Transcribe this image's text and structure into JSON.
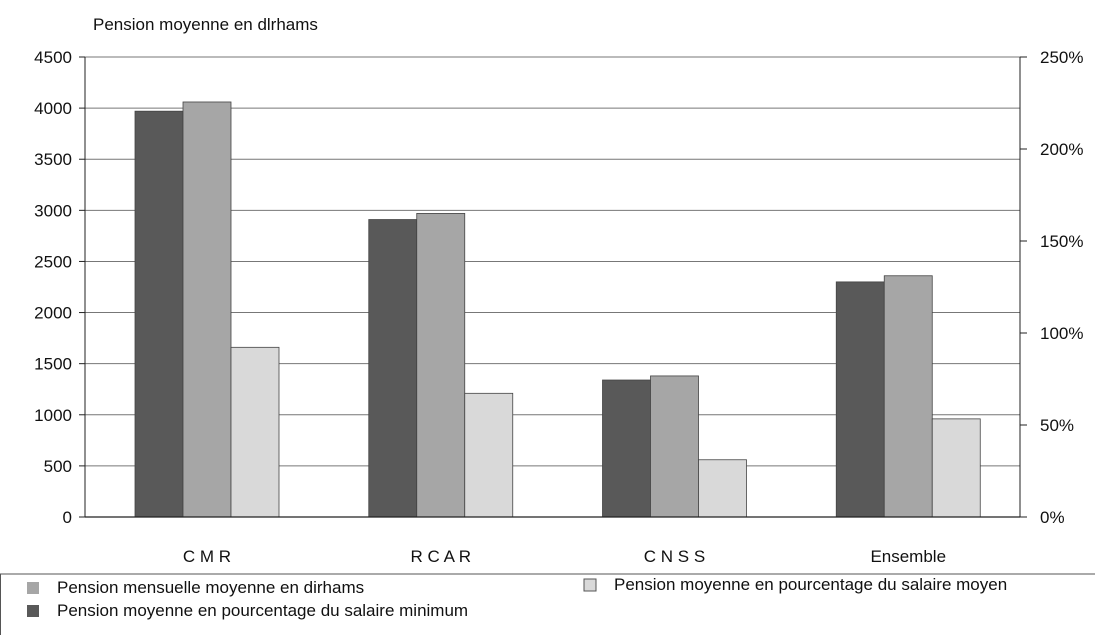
{
  "chart_data": {
    "type": "bar",
    "title": "",
    "ylabel": "Pension moyenne en dlrhams",
    "xlabel": "",
    "categories": [
      "C M R",
      "R C A R",
      "C N S S",
      "Ensemble"
    ],
    "ylim": [
      0,
      4500
    ],
    "yticks": [
      "0",
      "500",
      "1000",
      "1500",
      "2000",
      "2500",
      "3000",
      "3500",
      "4000",
      "4500"
    ],
    "y2lim": [
      0,
      250
    ],
    "y2ticks": [
      "0%",
      "50%",
      "100%",
      "150%",
      "200%",
      "250%"
    ],
    "grid": true,
    "legend_position": "bottom",
    "series": [
      {
        "name": "Pension moyenne en pourcentage du salaire minimum",
        "axis": "left",
        "color": "#595959",
        "values": [
          3970,
          2910,
          1340,
          2300
        ]
      },
      {
        "name": "Pension mensuelle moyenne en dirhams",
        "axis": "left",
        "color": "#a6a6a6",
        "values": [
          4060,
          2970,
          1380,
          2360
        ]
      },
      {
        "name": "Pension moyenne en pourcentage du salaire moyen",
        "axis": "left",
        "color": "#d9d9d9",
        "values": [
          1660,
          1210,
          560,
          960
        ]
      }
    ],
    "legend": [
      {
        "label": "Pension mensuelle moyenne en dirhams",
        "color": "#a6a6a6"
      },
      {
        "label": "Pension moyenne en pourcentage du salaire minimum",
        "color": "#595959"
      },
      {
        "label": "Pension moyenne en pourcentage du salaire moyen",
        "color": "#d9d9d9"
      }
    ]
  }
}
